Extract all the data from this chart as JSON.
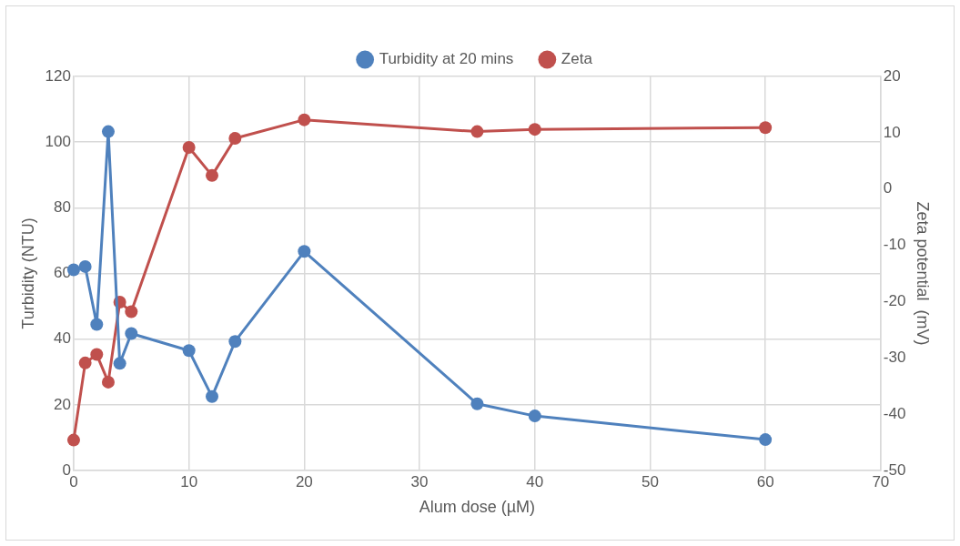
{
  "chart_data": {
    "type": "line",
    "xlabel": "Alum dose (µM)",
    "ylabel": "Turbidity (NTU)",
    "y2label": "Zeta potential  (mV)",
    "x": [
      0,
      1,
      2,
      3,
      4,
      5,
      10,
      12,
      14,
      20,
      35,
      40,
      60
    ],
    "series": [
      {
        "name": "Turbidity at 20 mins",
        "color": "#4f81bd",
        "values": [
          61.1,
          62.1,
          44.5,
          103.2,
          32.6,
          41.7,
          36.5,
          22.5,
          39.3,
          66.7,
          20.3,
          16.6,
          9.4
        ]
      },
      {
        "name": "Zeta",
        "color": "#c0504d",
        "axis": "y2",
        "values": [
          -44.6,
          -30.9,
          -29.4,
          -34.3,
          -20.1,
          -21.8,
          7.4,
          2.4,
          9.0,
          12.3,
          10.2,
          10.6,
          10.9
        ]
      }
    ],
    "xlim": [
      0,
      70
    ],
    "xticks": [
      0,
      10,
      20,
      30,
      40,
      50,
      60,
      70
    ],
    "ylim": [
      0,
      120
    ],
    "yticks": [
      0,
      20,
      40,
      60,
      80,
      100,
      120
    ],
    "y2lim": [
      -50,
      20
    ],
    "y2ticks": [
      -50,
      -40,
      -30,
      -20,
      -10,
      0,
      10,
      20
    ],
    "grid": true,
    "legend": "top",
    "marker": "circle",
    "line_style": "solid"
  }
}
